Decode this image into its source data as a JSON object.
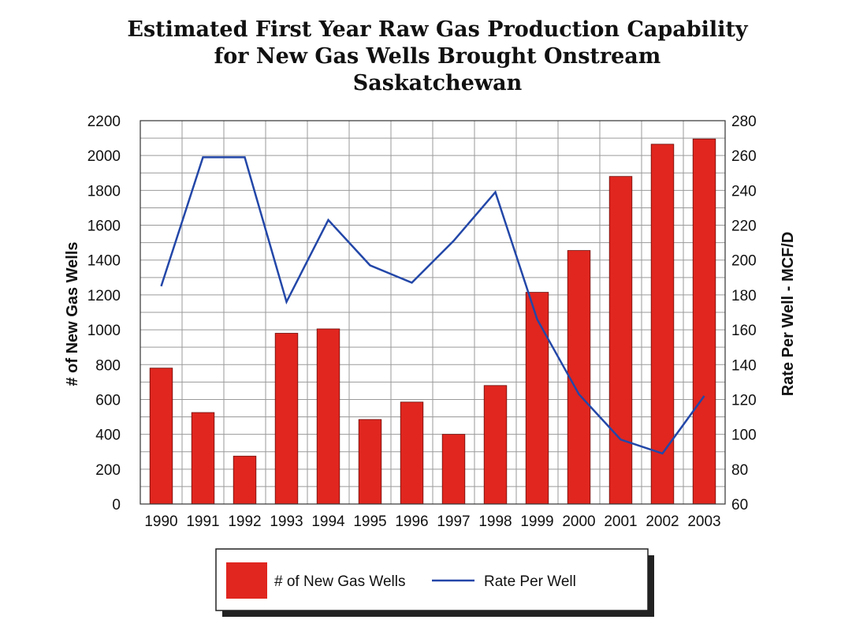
{
  "chart_data": {
    "type": "bar",
    "title_lines": [
      "Estimated First Year Raw Gas Production Capability",
      "for New Gas Wells Brought Onstream",
      "Saskatchewan"
    ],
    "categories": [
      "1990",
      "1991",
      "1992",
      "1993",
      "1994",
      "1995",
      "1996",
      "1997",
      "1998",
      "1999",
      "2000",
      "2001",
      "2002",
      "2003"
    ],
    "series": [
      {
        "name": "# of New Gas Wells",
        "type": "bar",
        "axis": "left",
        "color": "#e0261f",
        "values": [
          780,
          525,
          275,
          980,
          1005,
          485,
          585,
          400,
          680,
          1215,
          1455,
          1880,
          2065,
          2095
        ]
      },
      {
        "name": "Rate Per Well",
        "type": "line",
        "axis": "right",
        "color": "#2347a8",
        "values": [
          185,
          259,
          259,
          176,
          223,
          197,
          187,
          211,
          239,
          166,
          123,
          97,
          89,
          122
        ]
      }
    ],
    "ylabel": "# of New Gas Wells",
    "y2label": "Rate Per Well - MCF/D",
    "ylim": [
      0,
      2200
    ],
    "y2lim": [
      60,
      280
    ],
    "yticks": [
      0,
      200,
      400,
      600,
      800,
      1000,
      1200,
      1400,
      1600,
      1800,
      2000,
      2200
    ],
    "y2ticks": [
      60,
      80,
      100,
      120,
      140,
      160,
      180,
      200,
      220,
      240,
      260,
      280
    ],
    "grid": true,
    "legend_position": "bottom"
  }
}
